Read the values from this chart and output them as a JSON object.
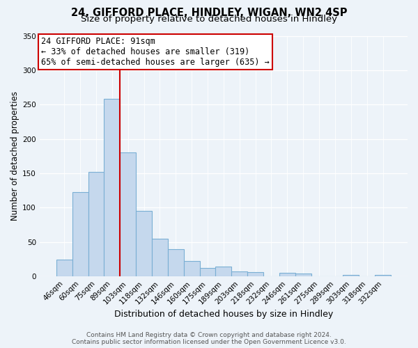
{
  "title": "24, GIFFORD PLACE, HINDLEY, WIGAN, WN2 4SP",
  "subtitle": "Size of property relative to detached houses in Hindley",
  "xlabel": "Distribution of detached houses by size in Hindley",
  "ylabel": "Number of detached properties",
  "bar_labels": [
    "46sqm",
    "60sqm",
    "75sqm",
    "89sqm",
    "103sqm",
    "118sqm",
    "132sqm",
    "146sqm",
    "160sqm",
    "175sqm",
    "189sqm",
    "203sqm",
    "218sqm",
    "232sqm",
    "246sqm",
    "261sqm",
    "275sqm",
    "289sqm",
    "303sqm",
    "318sqm",
    "332sqm"
  ],
  "bar_values": [
    25,
    123,
    152,
    258,
    180,
    95,
    55,
    40,
    22,
    12,
    14,
    7,
    6,
    0,
    5,
    4,
    0,
    0,
    2,
    0,
    2
  ],
  "bar_color": "#c5d8ed",
  "bar_edge_color": "#7aafd4",
  "vline_color": "#cc0000",
  "ylim": [
    0,
    350
  ],
  "yticks": [
    0,
    50,
    100,
    150,
    200,
    250,
    300,
    350
  ],
  "annotation_title": "24 GIFFORD PLACE: 91sqm",
  "annotation_line1": "← 33% of detached houses are smaller (319)",
  "annotation_line2": "65% of semi-detached houses are larger (635) →",
  "annotation_box_color": "#ffffff",
  "annotation_box_edge_color": "#cc0000",
  "footer1": "Contains HM Land Registry data © Crown copyright and database right 2024.",
  "footer2": "Contains public sector information licensed under the Open Government Licence v3.0.",
  "bg_color": "#edf3f9",
  "plot_bg_color": "#edf3f9",
  "title_fontsize": 10.5,
  "subtitle_fontsize": 9.5,
  "xlabel_fontsize": 9,
  "ylabel_fontsize": 8.5,
  "tick_fontsize": 7.5,
  "footer_fontsize": 6.5,
  "annot_fontsize": 8.5
}
